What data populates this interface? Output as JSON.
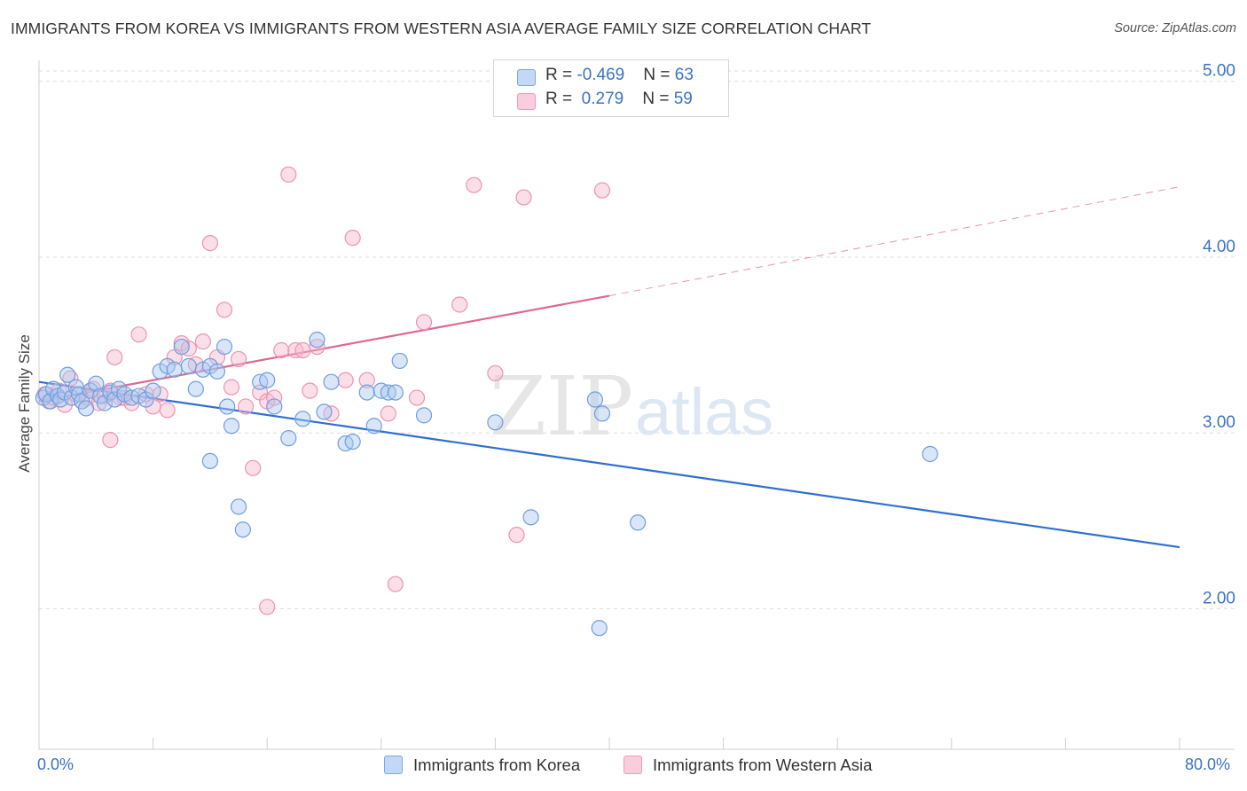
{
  "title": "IMMIGRANTS FROM KOREA VS IMMIGRANTS FROM WESTERN ASIA AVERAGE FAMILY SIZE CORRELATION CHART",
  "source": "Source: ZipAtlas.com",
  "watermark": {
    "zip": "ZIP",
    "atlas": "atlas"
  },
  "legend": {
    "rows": [
      {
        "r_label": "R = ",
        "r_value": "-0.469",
        "n_label": "N = ",
        "n_value": "63"
      },
      {
        "r_label": "R = ",
        "r_value": " 0.279",
        "n_label": "N = ",
        "n_value": "59"
      }
    ]
  },
  "colors": {
    "korea_fill": "#a9c8f0",
    "korea_stroke": "#6f9ee0",
    "korea_line": "#2f6fd0",
    "wa_fill": "#f6b9cd",
    "wa_stroke": "#ee93b1",
    "wa_line": "#e0678f",
    "axis_text": "#3a73c8",
    "grid": "#dcdcdc"
  },
  "chart_data": {
    "type": "scatter",
    "xlabel": "",
    "ylabel": "Average Family Size",
    "xlim": [
      0,
      80
    ],
    "ylim": [
      1.2,
      5.15
    ],
    "x_tick_labels": {
      "min": "0.0%",
      "max": "80.0%"
    },
    "y_ticks": [
      2.0,
      3.0,
      4.0,
      5.0
    ],
    "y_tick_labels": [
      "2.00",
      "3.00",
      "4.00",
      "5.00"
    ],
    "grid": true,
    "legend_position": "top-center",
    "series": [
      {
        "name": "Immigrants from Korea",
        "trend": {
          "x1": 0,
          "y1": 3.29,
          "x2": 80,
          "y2": 2.35,
          "dashed_from": null
        },
        "points": [
          [
            0.3,
            3.2
          ],
          [
            0.5,
            3.22
          ],
          [
            0.8,
            3.18
          ],
          [
            1.0,
            3.25
          ],
          [
            1.3,
            3.21
          ],
          [
            1.5,
            3.19
          ],
          [
            1.8,
            3.23
          ],
          [
            2.0,
            3.33
          ],
          [
            2.3,
            3.2
          ],
          [
            2.6,
            3.26
          ],
          [
            2.8,
            3.22
          ],
          [
            3.0,
            3.18
          ],
          [
            3.3,
            3.14
          ],
          [
            3.6,
            3.24
          ],
          [
            4.0,
            3.28
          ],
          [
            4.3,
            3.21
          ],
          [
            4.6,
            3.17
          ],
          [
            5.0,
            3.23
          ],
          [
            5.3,
            3.19
          ],
          [
            5.6,
            3.25
          ],
          [
            6.0,
            3.22
          ],
          [
            6.5,
            3.2
          ],
          [
            7.0,
            3.21
          ],
          [
            7.5,
            3.19
          ],
          [
            8.0,
            3.24
          ],
          [
            8.5,
            3.35
          ],
          [
            9.0,
            3.38
          ],
          [
            9.5,
            3.36
          ],
          [
            10.0,
            3.49
          ],
          [
            10.5,
            3.38
          ],
          [
            11.0,
            3.25
          ],
          [
            11.5,
            3.36
          ],
          [
            12.0,
            3.38
          ],
          [
            12.5,
            3.35
          ],
          [
            13.0,
            3.49
          ],
          [
            13.2,
            3.15
          ],
          [
            13.5,
            3.04
          ],
          [
            14.0,
            2.58
          ],
          [
            14.3,
            2.45
          ],
          [
            12.0,
            2.84
          ],
          [
            15.5,
            3.29
          ],
          [
            16.0,
            3.3
          ],
          [
            16.5,
            3.15
          ],
          [
            17.5,
            2.97
          ],
          [
            18.5,
            3.08
          ],
          [
            19.5,
            3.53
          ],
          [
            20.0,
            3.12
          ],
          [
            20.5,
            3.29
          ],
          [
            21.5,
            2.94
          ],
          [
            22.0,
            2.95
          ],
          [
            23.0,
            3.23
          ],
          [
            23.5,
            3.04
          ],
          [
            24.0,
            3.24
          ],
          [
            24.5,
            3.23
          ],
          [
            25.0,
            3.23
          ],
          [
            25.3,
            3.41
          ],
          [
            27.0,
            3.1
          ],
          [
            32.0,
            3.06
          ],
          [
            34.5,
            2.52
          ],
          [
            39.5,
            3.11
          ],
          [
            42.0,
            2.49
          ],
          [
            39.0,
            3.19
          ],
          [
            39.3,
            1.89
          ],
          [
            62.5,
            2.88
          ]
        ]
      },
      {
        "name": "Immigrants from Western Asia",
        "trend": {
          "x1": 0,
          "y1": 3.18,
          "x2": 40,
          "y2": 3.78,
          "x3": 80,
          "y3": 4.4,
          "dashed_from": 40
        },
        "points": [
          [
            0.4,
            3.22
          ],
          [
            0.7,
            3.18
          ],
          [
            1.0,
            3.2
          ],
          [
            1.4,
            3.24
          ],
          [
            1.8,
            3.16
          ],
          [
            2.2,
            3.31
          ],
          [
            2.6,
            3.22
          ],
          [
            3.0,
            3.18
          ],
          [
            3.4,
            3.2
          ],
          [
            3.8,
            3.25
          ],
          [
            4.2,
            3.17
          ],
          [
            4.6,
            3.21
          ],
          [
            5.0,
            3.24
          ],
          [
            5.0,
            2.96
          ],
          [
            5.3,
            3.43
          ],
          [
            5.7,
            3.2
          ],
          [
            6.0,
            3.2
          ],
          [
            6.5,
            3.17
          ],
          [
            7.0,
            3.56
          ],
          [
            7.5,
            3.22
          ],
          [
            8.0,
            3.15
          ],
          [
            8.5,
            3.22
          ],
          [
            9.0,
            3.13
          ],
          [
            9.5,
            3.43
          ],
          [
            10.0,
            3.51
          ],
          [
            10.5,
            3.48
          ],
          [
            11.0,
            3.39
          ],
          [
            11.5,
            3.52
          ],
          [
            12.0,
            4.08
          ],
          [
            12.5,
            3.43
          ],
          [
            13.0,
            3.7
          ],
          [
            13.5,
            3.26
          ],
          [
            14.0,
            3.42
          ],
          [
            14.5,
            3.15
          ],
          [
            15.0,
            2.8
          ],
          [
            15.5,
            3.23
          ],
          [
            16.0,
            3.18
          ],
          [
            16.5,
            3.2
          ],
          [
            16.0,
            2.01
          ],
          [
            17.0,
            3.47
          ],
          [
            17.5,
            4.47
          ],
          [
            18.0,
            3.47
          ],
          [
            18.5,
            3.47
          ],
          [
            19.0,
            3.24
          ],
          [
            19.5,
            3.49
          ],
          [
            20.5,
            3.11
          ],
          [
            21.5,
            3.3
          ],
          [
            22.0,
            4.11
          ],
          [
            24.5,
            3.11
          ],
          [
            25.0,
            2.14
          ],
          [
            27.0,
            3.63
          ],
          [
            29.5,
            3.73
          ],
          [
            30.5,
            4.41
          ],
          [
            32.0,
            3.34
          ],
          [
            33.5,
            2.42
          ],
          [
            34.0,
            4.34
          ],
          [
            39.5,
            4.38
          ],
          [
            26.5,
            3.2
          ],
          [
            23.0,
            3.3
          ]
        ]
      }
    ]
  },
  "bottom_legend": [
    {
      "label": "Immigrants from Korea"
    },
    {
      "label": "Immigrants from Western Asia"
    }
  ]
}
